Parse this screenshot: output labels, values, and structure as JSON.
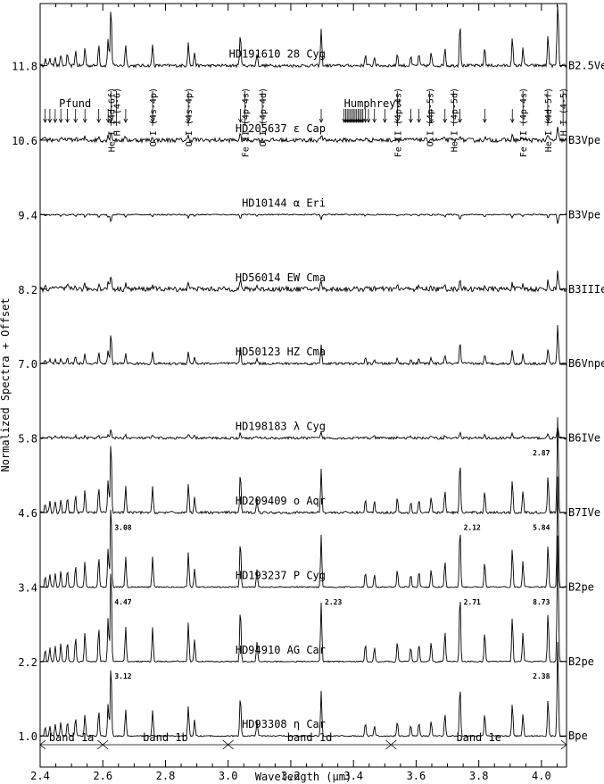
{
  "chart_data": {
    "type": "line",
    "xlabel": "Wavelength (μm)",
    "ylabel": "Normalized Spectra + Offset",
    "xlim": [
      2.4,
      4.08
    ],
    "ylim": [
      0.5,
      12.8
    ],
    "x_ticks": [
      "2.4",
      "2.6",
      "2.8",
      "3.0",
      "3.2",
      "3.4",
      "3.6",
      "3.8",
      "4.0"
    ],
    "grid": false,
    "series": [
      {
        "name": "HD191610 28 Cyg",
        "offset": 11.8,
        "offset_label": "11.8",
        "sptype": "B2.5Ve",
        "noise": 0.05,
        "scale": 1.0
      },
      {
        "name": "HD205637 ε Cap",
        "offset": 10.6,
        "offset_label": "10.6",
        "sptype": "B3Vpe",
        "noise": 0.07,
        "scale": 0.15
      },
      {
        "name": "HD10144 α Eri",
        "offset": 9.4,
        "offset_label": "9.4",
        "sptype": "B3Vpe",
        "noise": 0.02,
        "scale": -0.12
      },
      {
        "name": "HD56014 EW Cma",
        "offset": 8.2,
        "offset_label": "8.2",
        "sptype": "B3IIIe",
        "noise": 0.08,
        "scale": 0.25
      },
      {
        "name": "HD50123 HZ Cma",
        "offset": 7.0,
        "offset_label": "7.0",
        "sptype": "B6Vnpe",
        "noise": 0.04,
        "scale": 0.5
      },
      {
        "name": "HD198183 λ Cyg",
        "offset": 5.8,
        "offset_label": "5.8",
        "sptype": "B6IVe",
        "noise": 0.04,
        "scale": 0.15
      },
      {
        "name": "HD209409 o Aqr",
        "offset": 4.6,
        "offset_label": "4.6",
        "sptype": "B7IVe",
        "noise": 0.04,
        "scale": 1.2
      },
      {
        "name": "HD193237 P Cyg",
        "offset": 3.4,
        "offset_label": "3.4",
        "sptype": "B2pe",
        "noise": 0.02,
        "scale": 1.4
      },
      {
        "name": "HD94910 AG Car",
        "offset": 2.2,
        "offset_label": "2.2",
        "sptype": "B2pe",
        "noise": 0.02,
        "scale": 1.6
      },
      {
        "name": "HD93308 η Car",
        "offset": 1.0,
        "offset_label": "1.0",
        "sptype": "Bpe",
        "noise": 0.02,
        "scale": 1.2
      }
    ],
    "emission_lines": [
      2.416,
      2.431,
      2.448,
      2.466,
      2.487,
      2.513,
      2.543,
      2.587,
      2.617,
      2.626,
      2.673,
      2.759,
      2.873,
      2.893,
      3.039,
      3.092,
      3.297,
      3.438,
      3.467,
      3.54,
      3.583,
      3.609,
      3.648,
      3.692,
      3.74,
      3.819,
      3.907,
      3.941,
      4.021,
      4.052
    ],
    "peak_labels": [
      {
        "series": 6,
        "x": 4.052,
        "text": "2.87"
      },
      {
        "series": 7,
        "x": 2.626,
        "text": "3.08"
      },
      {
        "series": 7,
        "x": 3.74,
        "text": "2.12"
      },
      {
        "series": 7,
        "x": 4.052,
        "text": "5.84"
      },
      {
        "series": 8,
        "x": 2.626,
        "text": "4.47"
      },
      {
        "series": 8,
        "x": 3.297,
        "text": "2.23"
      },
      {
        "series": 8,
        "x": 3.74,
        "text": "2.71"
      },
      {
        "series": 8,
        "x": 4.052,
        "text": "8.73"
      },
      {
        "series": 9,
        "x": 2.626,
        "text": "3.12"
      },
      {
        "series": 9,
        "x": 4.052,
        "text": "2.38"
      }
    ],
    "line_ids": [
      {
        "x": 2.626,
        "text": "He I (4d-6f)"
      },
      {
        "x": 2.626,
        "text": "H I (4-6)"
      },
      {
        "x": 2.759,
        "text": "O I (4s-4p)"
      },
      {
        "x": 2.873,
        "text": "O I (4s-4p)"
      },
      {
        "x": 3.071,
        "text": "Fe II (4p-4s)"
      },
      {
        "x": 3.092,
        "text": "O I (4p-4d)"
      },
      {
        "x": 3.54,
        "text": "Fe II (4p-4s)"
      },
      {
        "x": 3.66,
        "text": "O I (4p-5s)"
      },
      {
        "x": 3.703,
        "text": "He I (4p-5d)"
      },
      {
        "x": 3.941,
        "text": "Fe II (4p-4s)"
      },
      {
        "x": 4.037,
        "text": "He I (4d-5f)"
      },
      {
        "x": 4.052,
        "text": "H I (4-5)"
      }
    ],
    "series_labels": [
      "Pfund",
      "Humphreys"
    ],
    "arrow_marks": [
      2.416,
      2.431,
      2.448,
      2.466,
      2.487,
      2.513,
      2.543,
      2.587,
      2.617,
      2.626,
      2.673,
      2.759,
      2.873,
      3.039,
      3.297,
      3.37,
      3.375,
      3.38,
      3.385,
      3.39,
      3.395,
      3.4,
      3.405,
      3.41,
      3.415,
      3.42,
      3.425,
      3.43,
      3.438,
      3.448,
      3.467,
      3.5,
      3.54,
      3.583,
      3.609,
      3.648,
      3.692,
      3.74,
      3.819,
      3.907,
      4.021
    ],
    "bands": [
      {
        "label": "band 1a",
        "from": 2.4,
        "to": 2.6
      },
      {
        "label": "band 1b",
        "from": 2.6,
        "to": 3.0
      },
      {
        "label": "band 1d",
        "from": 3.0,
        "to": 3.52
      },
      {
        "label": "band 1e",
        "from": 3.52,
        "to": 4.08
      }
    ]
  }
}
